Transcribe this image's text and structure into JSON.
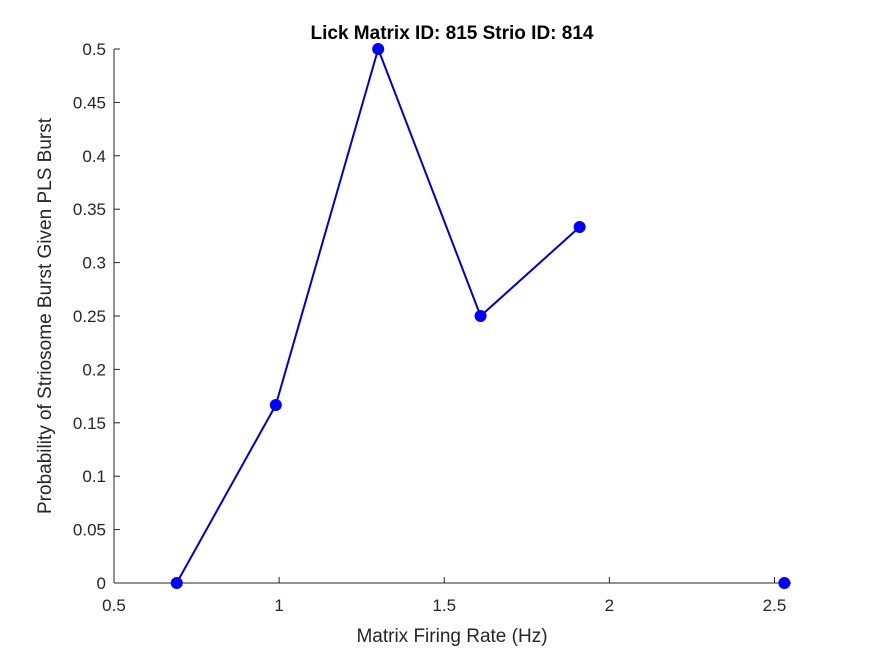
{
  "chart_data": {
    "type": "line",
    "title": "Lick Matrix ID: 815 Strio ID: 814",
    "xlabel": "Matrix Firing Rate (Hz)",
    "ylabel": "Probability of Striosome Burst Given PLS Burst",
    "xlim": [
      0.5,
      2.55
    ],
    "ylim": [
      0,
      0.5
    ],
    "xticks": [
      0.5,
      1,
      1.5,
      2,
      2.5
    ],
    "xtick_labels": [
      "0.5",
      "1",
      "1.5",
      "2",
      "2.5"
    ],
    "yticks": [
      0,
      0.05,
      0.1,
      0.15,
      0.2,
      0.25,
      0.3,
      0.35,
      0.4,
      0.45,
      0.5
    ],
    "ytick_labels": [
      "0",
      "0.05",
      "0.1",
      "0.15",
      "0.2",
      "0.25",
      "0.3",
      "0.35",
      "0.4",
      "0.45",
      "0.5"
    ],
    "grid": false,
    "box": "left-bottom",
    "series": [
      {
        "color": "#0000ff",
        "line_color": "#0000cd",
        "marker": "circle",
        "segments": [
          [
            {
              "x": 0.69,
              "y": 0
            },
            {
              "x": 0.99,
              "y": 0.1667
            },
            {
              "x": 1.3,
              "y": 0.5
            },
            {
              "x": 1.61,
              "y": 0.25
            },
            {
              "x": 1.91,
              "y": 0.3333
            }
          ],
          [
            {
              "x": 2.53,
              "y": 0
            }
          ]
        ]
      }
    ]
  }
}
